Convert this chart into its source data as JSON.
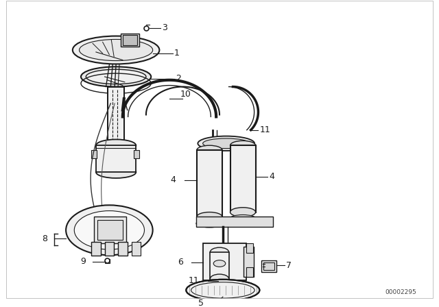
{
  "bg_color": "#ffffff",
  "line_color": "#1a1a1a",
  "diagram_id": "00002295",
  "figsize": [
    6.4,
    4.48
  ],
  "dpi": 100,
  "border_color": "#cccccc"
}
